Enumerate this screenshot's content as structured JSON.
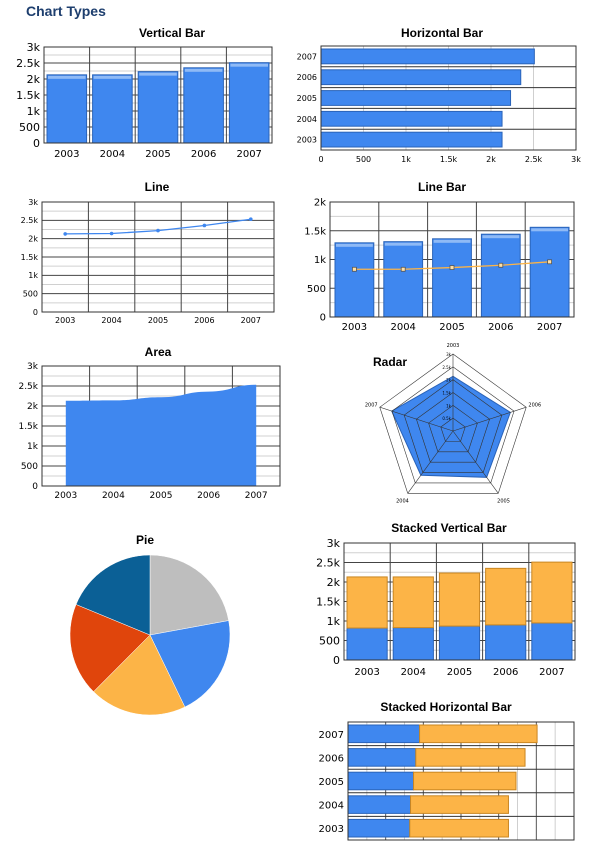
{
  "page": {
    "title": "Chart Types"
  },
  "colors": {
    "blue": "#3f87ef",
    "blue_dark": "#2a63b8",
    "orange": "#fcb447",
    "orange_dark": "#c98622",
    "pie": [
      "#bebebe",
      "#3f87ef",
      "#fcb447",
      "#e0450c",
      "#0b6096"
    ]
  },
  "chart_data": [
    {
      "id": "vbar",
      "type": "bar",
      "title": "Vertical Bar",
      "categories": [
        "2003",
        "2004",
        "2005",
        "2006",
        "2007"
      ],
      "values": [
        2130,
        2130,
        2230,
        2350,
        2510
      ],
      "ylim": [
        0,
        3000
      ],
      "yticks": [
        0,
        500,
        1000,
        1500,
        2000,
        2500,
        3000
      ],
      "ytick_labels": [
        "0",
        "500",
        "1k",
        "1.5k",
        "2k",
        "2.5k",
        "3k"
      ]
    },
    {
      "id": "hbar",
      "type": "bar",
      "orientation": "horizontal",
      "title": "Horizontal Bar",
      "categories": [
        "2003",
        "2004",
        "2005",
        "2006",
        "2007"
      ],
      "values": [
        2130,
        2130,
        2230,
        2350,
        2510
      ],
      "xlim": [
        0,
        3000
      ],
      "xticks": [
        0,
        500,
        1000,
        1500,
        2000,
        2500,
        3000
      ],
      "xtick_labels": [
        "0",
        "500",
        "1k",
        "1.5k",
        "2k",
        "2.5k",
        "3k"
      ]
    },
    {
      "id": "line",
      "type": "line",
      "title": "Line",
      "categories": [
        "2003",
        "2004",
        "2005",
        "2006",
        "2007"
      ],
      "values": [
        2130,
        2140,
        2220,
        2360,
        2530
      ],
      "ylim": [
        0,
        3000
      ],
      "yticks": [
        0,
        500,
        1000,
        1500,
        2000,
        2500,
        3000
      ],
      "ytick_labels": [
        "0",
        "500",
        "1k",
        "1.5k",
        "2k",
        "2.5k",
        "3k"
      ]
    },
    {
      "id": "linebar",
      "type": "bar",
      "title": "Line Bar",
      "categories": [
        "2003",
        "2004",
        "2005",
        "2006",
        "2007"
      ],
      "bar_values": [
        1290,
        1310,
        1360,
        1440,
        1560
      ],
      "line_values": [
        830,
        830,
        860,
        900,
        960
      ],
      "ylim": [
        0,
        2000
      ],
      "yticks": [
        0,
        500,
        1000,
        1500,
        2000
      ],
      "ytick_labels": [
        "0",
        "500",
        "1k",
        "1.5k",
        "2k"
      ]
    },
    {
      "id": "area",
      "type": "area",
      "title": "Area",
      "categories": [
        "2003",
        "2004",
        "2005",
        "2006",
        "2007"
      ],
      "values": [
        2130,
        2140,
        2220,
        2360,
        2530
      ],
      "ylim": [
        0,
        3000
      ],
      "yticks": [
        0,
        500,
        1000,
        1500,
        2000,
        2500,
        3000
      ],
      "ytick_labels": [
        "0",
        "500",
        "1k",
        "1.5k",
        "2k",
        "2.5k",
        "3k"
      ]
    },
    {
      "id": "radar",
      "type": "radar",
      "title": "Radar",
      "categories": [
        "2003",
        "2006",
        "2005",
        "2004",
        "2007"
      ],
      "values": [
        2130,
        2350,
        2230,
        2130,
        2510
      ],
      "rlim": [
        0,
        3000
      ],
      "rticks": [
        0,
        500,
        1000,
        1500,
        2000,
        2500,
        3000
      ],
      "rtick_labels": [
        "0",
        "0.5k",
        "1k",
        "1.5k",
        "2k",
        "2.5k",
        "3k"
      ]
    },
    {
      "id": "pie",
      "type": "pie",
      "title": "Pie",
      "values": [
        2510,
        2350,
        2230,
        2130,
        2130
      ]
    },
    {
      "id": "svbar",
      "type": "bar",
      "stacked": true,
      "title": "Stacked Vertical Bar",
      "categories": [
        "2003",
        "2004",
        "2005",
        "2006",
        "2007"
      ],
      "series": [
        {
          "values": [
            820,
            830,
            870,
            900,
            950
          ]
        },
        {
          "values": [
            1310,
            1300,
            1360,
            1450,
            1560
          ]
        }
      ],
      "ylim": [
        0,
        3000
      ],
      "yticks": [
        0,
        500,
        1000,
        1500,
        2000,
        2500,
        3000
      ],
      "ytick_labels": [
        "0",
        "500",
        "1k",
        "1.5k",
        "2k",
        "2.5k",
        "3k"
      ]
    },
    {
      "id": "shbar",
      "type": "bar",
      "stacked": true,
      "orientation": "horizontal",
      "title": "Stacked Horizontal Bar",
      "categories": [
        "2003",
        "2004",
        "2005",
        "2006",
        "2007"
      ],
      "series": [
        {
          "values": [
            820,
            830,
            870,
            900,
            950
          ]
        },
        {
          "values": [
            1310,
            1300,
            1360,
            1450,
            1560
          ]
        }
      ],
      "xlim": [
        0,
        3000
      ]
    }
  ]
}
